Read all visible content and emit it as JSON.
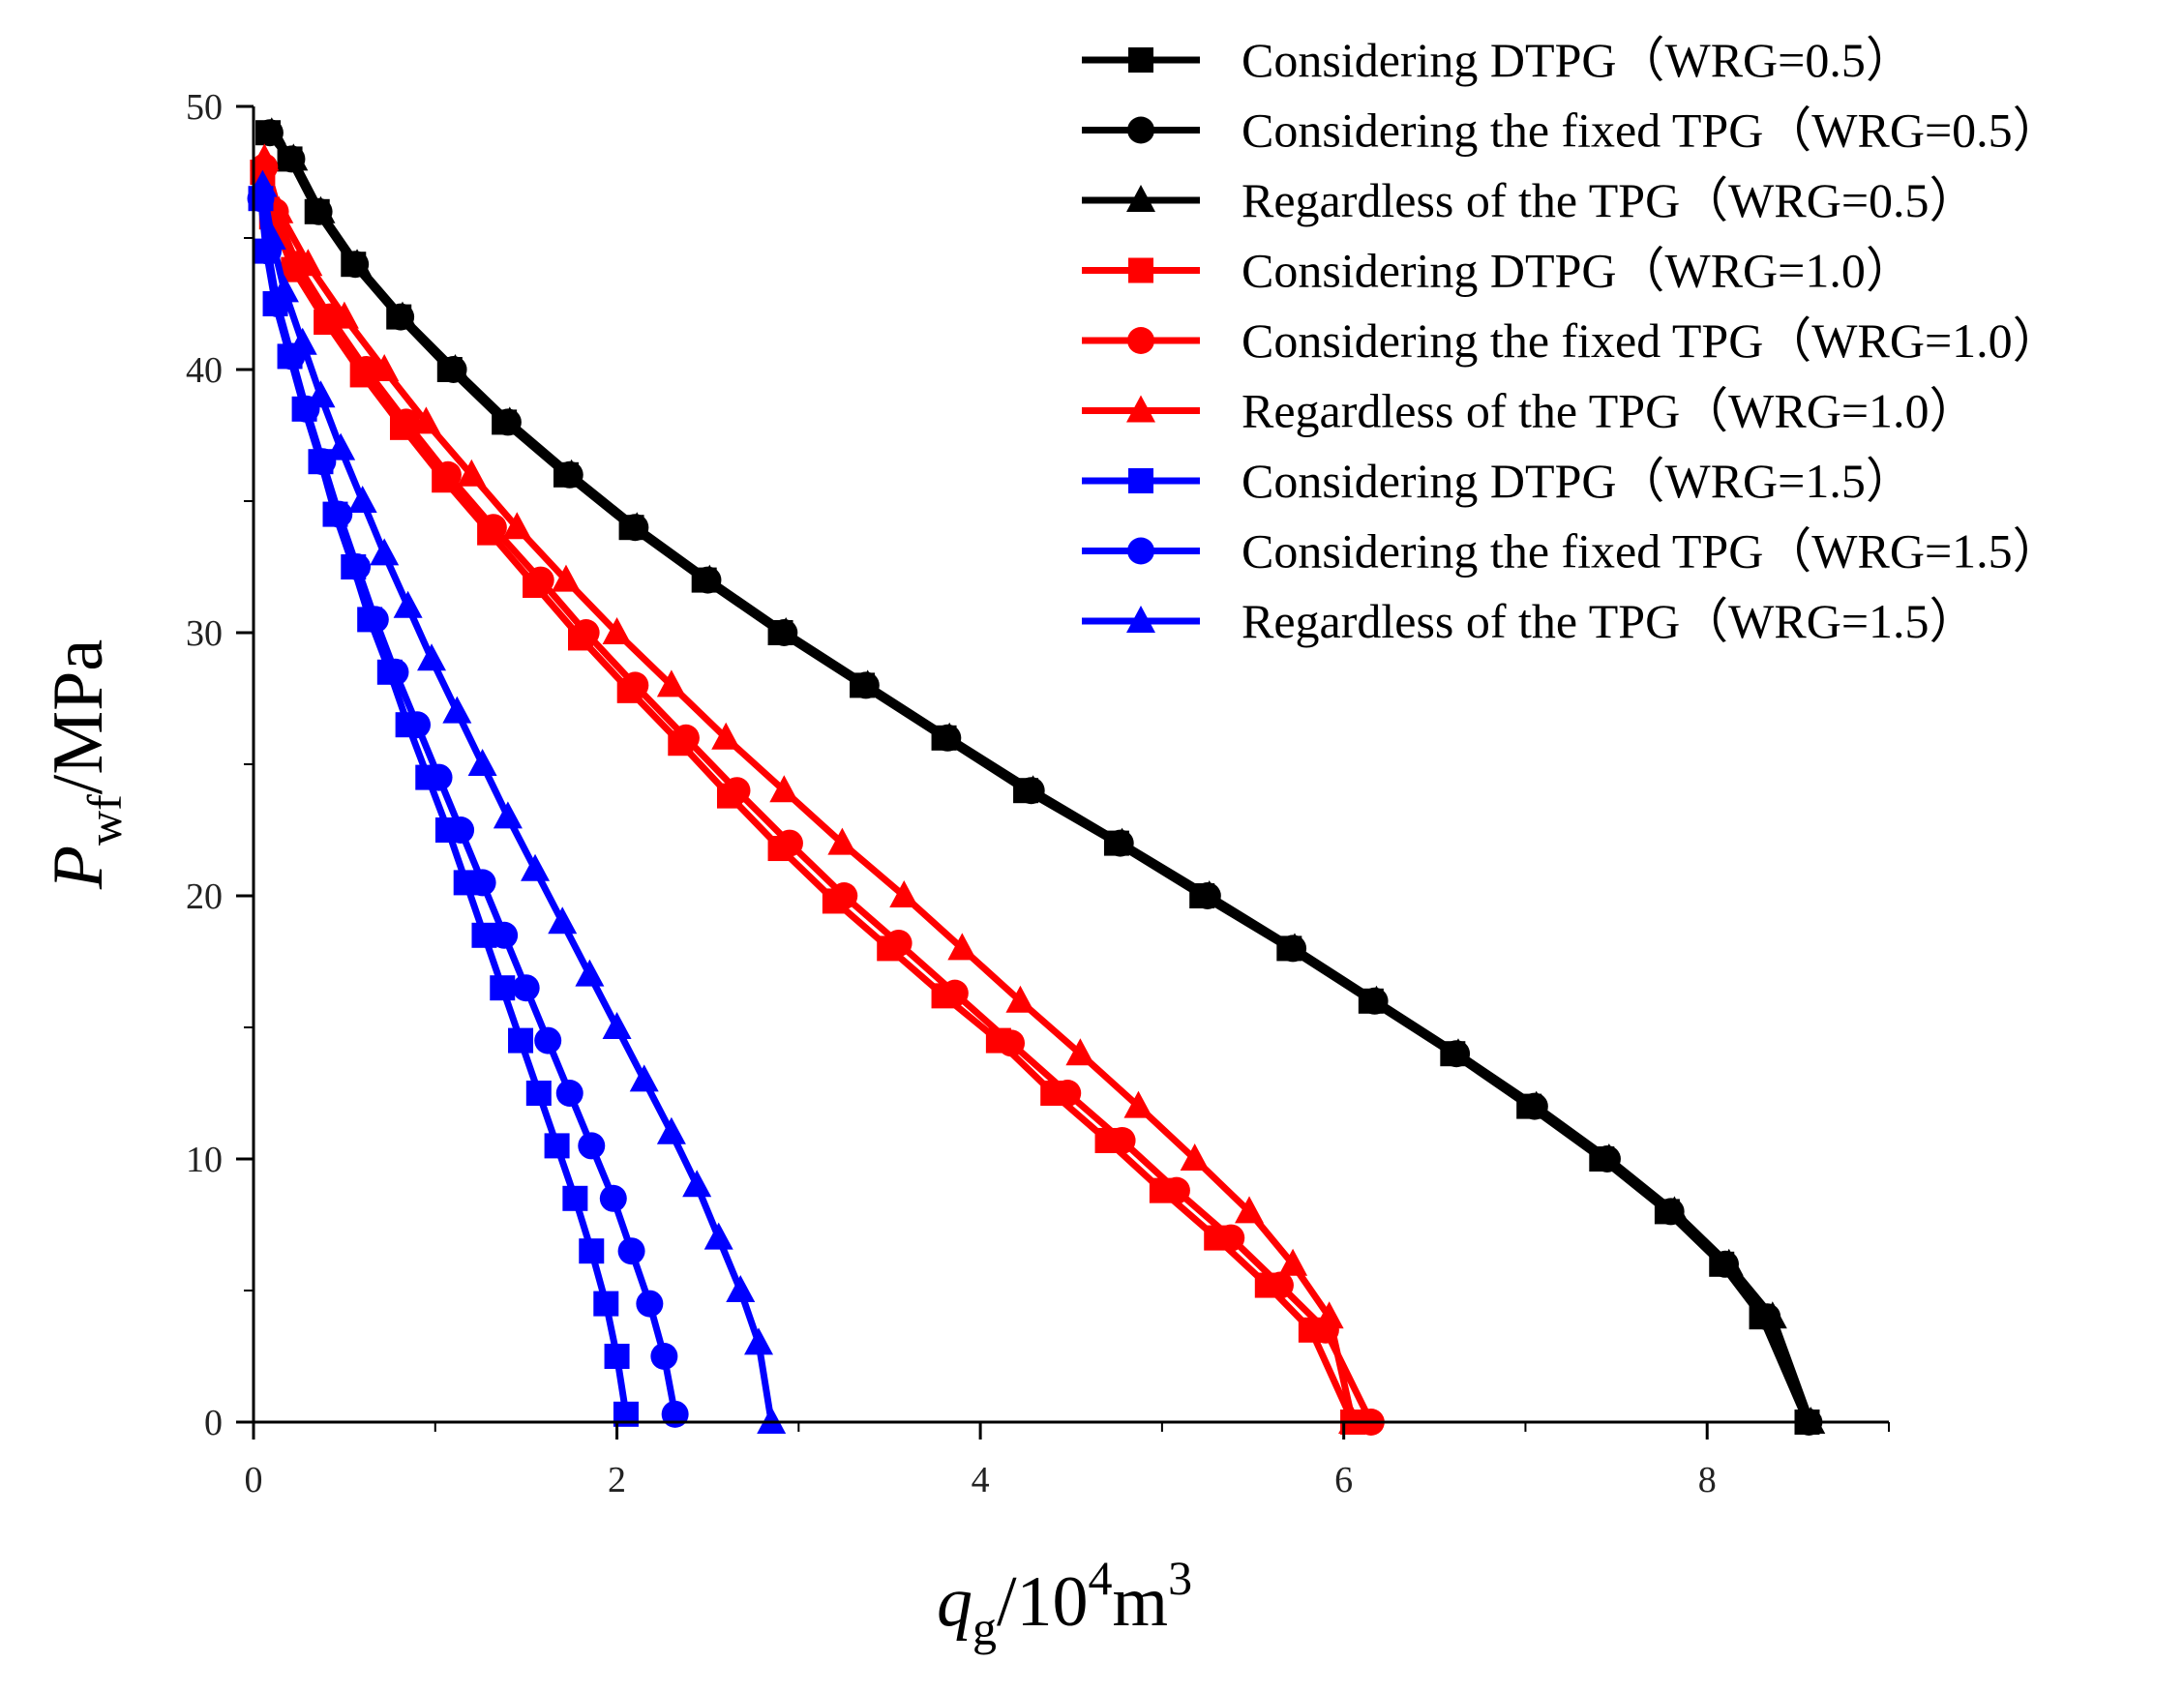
{
  "chart_data": {
    "type": "line",
    "xlabel": {
      "main": "q",
      "sub": "g",
      "rest1": "/10",
      "sup1": "4",
      "rest2": "m",
      "sup2": "3"
    },
    "ylabel": {
      "main": "P",
      "sub": "wf",
      "rest": "/MPa"
    },
    "xlim": [
      0,
      9
    ],
    "ylim": [
      0,
      50
    ],
    "x_ticks": [
      0,
      2,
      4,
      6,
      8
    ],
    "x_tick_labels": [
      "0",
      "2",
      "4",
      "6",
      "8"
    ],
    "y_ticks": [
      0,
      10,
      20,
      30,
      40,
      50
    ],
    "y_tick_labels": [
      "0",
      "10",
      "20",
      "30",
      "40",
      "50"
    ],
    "legend_position": "top-right",
    "colors": {
      "black": "#000000",
      "red": "#ff0000",
      "blue": "#0000ff"
    },
    "series": [
      {
        "name": "Considering DTPG（WRG=0.5）",
        "color": "#000000",
        "marker": "square",
        "points": [
          [
            0.08,
            49
          ],
          [
            0.2,
            48
          ],
          [
            0.35,
            46
          ],
          [
            0.55,
            44
          ],
          [
            0.8,
            42
          ],
          [
            1.08,
            40
          ],
          [
            1.38,
            38
          ],
          [
            1.72,
            36
          ],
          [
            2.08,
            34
          ],
          [
            2.48,
            32
          ],
          [
            2.9,
            30
          ],
          [
            3.35,
            28
          ],
          [
            3.8,
            26
          ],
          [
            4.25,
            24
          ],
          [
            4.75,
            22
          ],
          [
            5.22,
            20
          ],
          [
            5.7,
            18
          ],
          [
            6.15,
            16
          ],
          [
            6.6,
            14
          ],
          [
            7.02,
            12
          ],
          [
            7.42,
            10
          ],
          [
            7.78,
            8
          ],
          [
            8.08,
            6
          ],
          [
            8.3,
            4
          ],
          [
            8.55,
            0
          ]
        ]
      },
      {
        "name": "Considering the fixed TPG（WRG=0.5）",
        "color": "#000000",
        "marker": "circle",
        "points": [
          [
            0.09,
            49
          ],
          [
            0.21,
            48
          ],
          [
            0.36,
            46
          ],
          [
            0.56,
            44
          ],
          [
            0.81,
            42
          ],
          [
            1.1,
            40
          ],
          [
            1.4,
            38
          ],
          [
            1.74,
            36
          ],
          [
            2.1,
            34
          ],
          [
            2.5,
            32
          ],
          [
            2.92,
            30
          ],
          [
            3.37,
            28
          ],
          [
            3.82,
            26
          ],
          [
            4.28,
            24
          ],
          [
            4.77,
            22
          ],
          [
            5.25,
            20
          ],
          [
            5.72,
            18
          ],
          [
            6.17,
            16
          ],
          [
            6.62,
            14
          ],
          [
            7.05,
            12
          ],
          [
            7.45,
            10
          ],
          [
            7.8,
            8
          ],
          [
            8.1,
            6
          ],
          [
            8.33,
            4
          ],
          [
            8.56,
            0
          ]
        ]
      },
      {
        "name": "Regardless of the TPG（WRG=0.5）",
        "color": "#000000",
        "marker": "triangle",
        "points": [
          [
            0.1,
            49
          ],
          [
            0.22,
            48
          ],
          [
            0.37,
            46
          ],
          [
            0.57,
            44
          ],
          [
            0.82,
            42
          ],
          [
            1.11,
            40
          ],
          [
            1.41,
            38
          ],
          [
            1.75,
            36
          ],
          [
            2.11,
            34
          ],
          [
            2.51,
            32
          ],
          [
            2.93,
            30
          ],
          [
            3.38,
            28
          ],
          [
            3.83,
            26
          ],
          [
            4.29,
            24
          ],
          [
            4.78,
            22
          ],
          [
            5.26,
            20
          ],
          [
            5.73,
            18
          ],
          [
            6.18,
            16
          ],
          [
            6.63,
            14
          ],
          [
            7.06,
            12
          ],
          [
            7.46,
            10
          ],
          [
            7.82,
            8
          ],
          [
            8.12,
            6
          ],
          [
            8.36,
            4
          ],
          [
            8.57,
            0
          ]
        ]
      },
      {
        "name": "Considering DTPG（WRG=1.0）",
        "color": "#ff0000",
        "marker": "square",
        "points": [
          [
            0.05,
            47.5
          ],
          [
            0.1,
            45.8
          ],
          [
            0.22,
            43.8
          ],
          [
            0.4,
            41.8
          ],
          [
            0.6,
            39.8
          ],
          [
            0.82,
            37.8
          ],
          [
            1.05,
            35.8
          ],
          [
            1.3,
            33.8
          ],
          [
            1.55,
            31.8
          ],
          [
            1.8,
            29.8
          ],
          [
            2.07,
            27.8
          ],
          [
            2.35,
            25.8
          ],
          [
            2.62,
            23.8
          ],
          [
            2.9,
            21.8
          ],
          [
            3.2,
            19.8
          ],
          [
            3.5,
            18
          ],
          [
            3.8,
            16.2
          ],
          [
            4.1,
            14.5
          ],
          [
            4.4,
            12.5
          ],
          [
            4.7,
            10.7
          ],
          [
            5.0,
            8.8
          ],
          [
            5.3,
            7.0
          ],
          [
            5.58,
            5.2
          ],
          [
            5.82,
            3.5
          ],
          [
            6.05,
            0
          ]
        ]
      },
      {
        "name": "Considering the fixed TPG（WRG=1.0）",
        "color": "#ff0000",
        "marker": "circle",
        "points": [
          [
            0.06,
            47.7
          ],
          [
            0.12,
            46
          ],
          [
            0.24,
            44
          ],
          [
            0.42,
            42
          ],
          [
            0.62,
            40
          ],
          [
            0.84,
            38
          ],
          [
            1.07,
            36
          ],
          [
            1.32,
            34
          ],
          [
            1.58,
            32
          ],
          [
            1.83,
            30
          ],
          [
            2.1,
            28
          ],
          [
            2.38,
            26
          ],
          [
            2.66,
            24
          ],
          [
            2.95,
            22
          ],
          [
            3.25,
            20
          ],
          [
            3.55,
            18.2
          ],
          [
            3.86,
            16.3
          ],
          [
            4.17,
            14.4
          ],
          [
            4.48,
            12.5
          ],
          [
            4.78,
            10.7
          ],
          [
            5.08,
            8.8
          ],
          [
            5.38,
            7.0
          ],
          [
            5.65,
            5.2
          ],
          [
            5.9,
            3.5
          ],
          [
            6.15,
            0
          ]
        ]
      },
      {
        "name": "Regardless of the TPG（WRG=1.0）",
        "color": "#ff0000",
        "marker": "triangle",
        "points": [
          [
            0.06,
            48
          ],
          [
            0.14,
            46
          ],
          [
            0.3,
            44
          ],
          [
            0.5,
            42
          ],
          [
            0.72,
            40
          ],
          [
            0.95,
            38
          ],
          [
            1.2,
            36
          ],
          [
            1.45,
            34
          ],
          [
            1.72,
            32
          ],
          [
            2.0,
            30
          ],
          [
            2.3,
            28
          ],
          [
            2.6,
            26
          ],
          [
            2.92,
            24
          ],
          [
            3.24,
            22
          ],
          [
            3.58,
            20
          ],
          [
            3.9,
            18
          ],
          [
            4.22,
            16
          ],
          [
            4.55,
            14
          ],
          [
            4.87,
            12
          ],
          [
            5.18,
            10
          ],
          [
            5.48,
            8
          ],
          [
            5.72,
            6
          ],
          [
            5.92,
            4
          ],
          [
            6.05,
            0
          ]
        ]
      },
      {
        "name": "Considering DTPG（WRG=1.5）",
        "color": "#0000ff",
        "marker": "square",
        "points": [
          [
            0.04,
            46.5
          ],
          [
            0.07,
            44.5
          ],
          [
            0.12,
            42.5
          ],
          [
            0.2,
            40.5
          ],
          [
            0.28,
            38.5
          ],
          [
            0.37,
            36.5
          ],
          [
            0.45,
            34.5
          ],
          [
            0.55,
            32.5
          ],
          [
            0.64,
            30.5
          ],
          [
            0.75,
            28.5
          ],
          [
            0.85,
            26.5
          ],
          [
            0.96,
            24.5
          ],
          [
            1.07,
            22.5
          ],
          [
            1.17,
            20.5
          ],
          [
            1.27,
            18.5
          ],
          [
            1.37,
            16.5
          ],
          [
            1.47,
            14.5
          ],
          [
            1.57,
            12.5
          ],
          [
            1.67,
            10.5
          ],
          [
            1.77,
            8.5
          ],
          [
            1.86,
            6.5
          ],
          [
            1.94,
            4.5
          ],
          [
            2.0,
            2.5
          ],
          [
            2.05,
            0.3
          ]
        ]
      },
      {
        "name": "Considering the fixed TPG（WRG=1.5）",
        "color": "#0000ff",
        "marker": "circle",
        "points": [
          [
            0.04,
            46.5
          ],
          [
            0.08,
            44.5
          ],
          [
            0.13,
            42.5
          ],
          [
            0.21,
            40.5
          ],
          [
            0.29,
            38.5
          ],
          [
            0.38,
            36.5
          ],
          [
            0.47,
            34.5
          ],
          [
            0.57,
            32.5
          ],
          [
            0.67,
            30.5
          ],
          [
            0.78,
            28.5
          ],
          [
            0.9,
            26.5
          ],
          [
            1.02,
            24.5
          ],
          [
            1.14,
            22.5
          ],
          [
            1.26,
            20.5
          ],
          [
            1.38,
            18.5
          ],
          [
            1.5,
            16.5
          ],
          [
            1.62,
            14.5
          ],
          [
            1.74,
            12.5
          ],
          [
            1.86,
            10.5
          ],
          [
            1.98,
            8.5
          ],
          [
            2.08,
            6.5
          ],
          [
            2.18,
            4.5
          ],
          [
            2.26,
            2.5
          ],
          [
            2.32,
            0.3
          ]
        ]
      },
      {
        "name": "Regardless of the TPG（WRG=1.5）",
        "color": "#0000ff",
        "marker": "triangle",
        "points": [
          [
            0.05,
            47
          ],
          [
            0.1,
            45
          ],
          [
            0.17,
            43
          ],
          [
            0.27,
            41
          ],
          [
            0.37,
            39
          ],
          [
            0.48,
            37
          ],
          [
            0.6,
            35
          ],
          [
            0.72,
            33
          ],
          [
            0.85,
            31
          ],
          [
            0.98,
            29
          ],
          [
            1.12,
            27
          ],
          [
            1.26,
            25
          ],
          [
            1.4,
            23
          ],
          [
            1.55,
            21
          ],
          [
            1.7,
            19
          ],
          [
            1.85,
            17
          ],
          [
            2.0,
            15
          ],
          [
            2.15,
            13
          ],
          [
            2.3,
            11
          ],
          [
            2.44,
            9
          ],
          [
            2.56,
            7
          ],
          [
            2.68,
            5
          ],
          [
            2.78,
            3
          ],
          [
            2.85,
            0
          ]
        ]
      }
    ]
  }
}
